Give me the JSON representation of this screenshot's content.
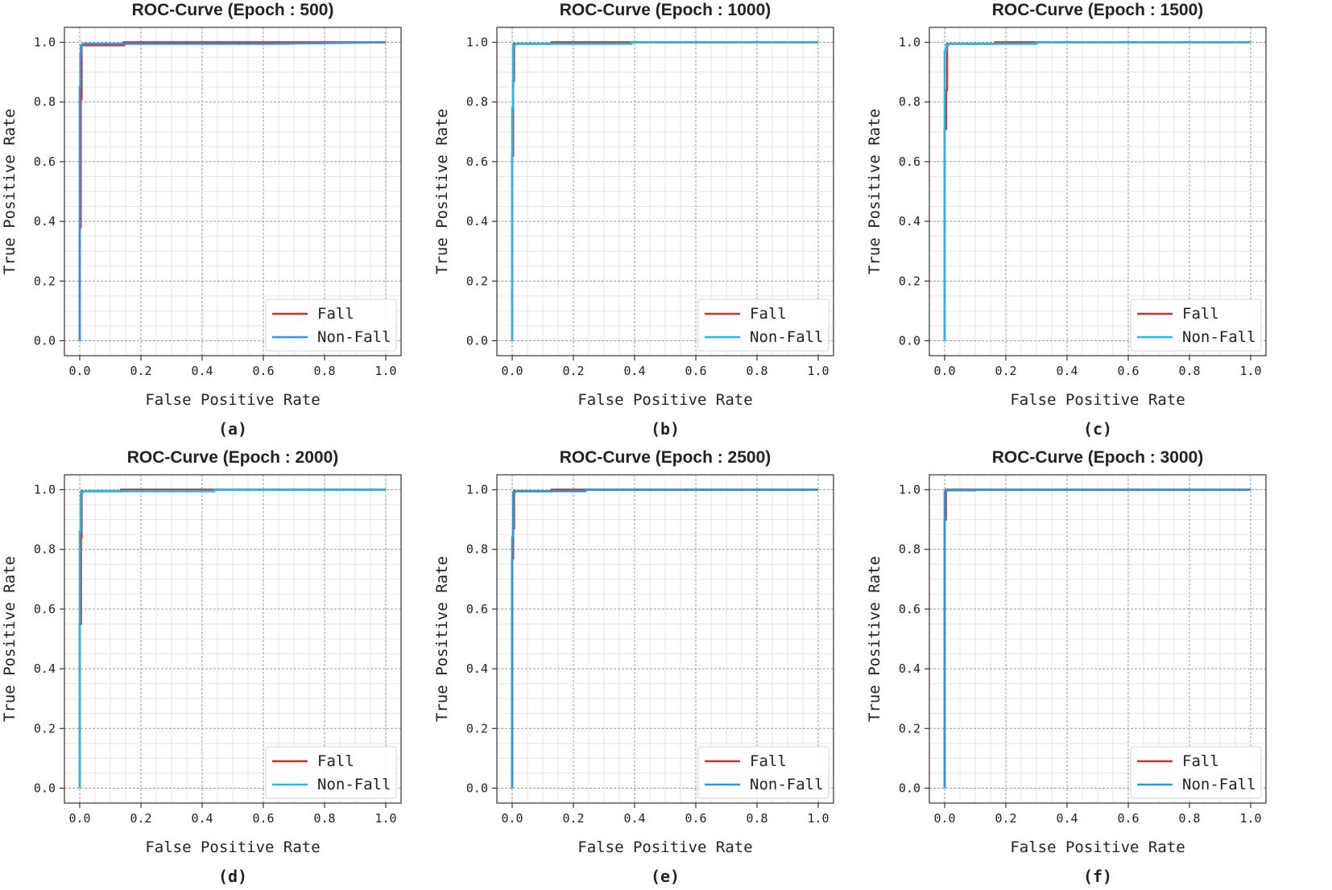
{
  "figure": {
    "colors": {
      "fall": "#c0392b",
      "nonfall_blue": "#3a8fde",
      "nonfall_cyan": "#29b6e8",
      "grid_major": "#9a9a9a",
      "grid_minor": "#e4e4e4",
      "frame": "#333333"
    }
  },
  "chart_data": [
    {
      "type": "line",
      "panel": "a",
      "title": "ROC-Curve (Epoch : 500)",
      "caption": "(a)",
      "xlabel": "False Positive Rate",
      "ylabel": "True Positive Rate",
      "xlim": [
        -0.05,
        1.05
      ],
      "ylim": [
        -0.05,
        1.05
      ],
      "xticks": [
        "0.0",
        "0.2",
        "0.4",
        "0.6",
        "0.8",
        "1.0"
      ],
      "yticks": [
        "0.0",
        "0.2",
        "0.4",
        "0.6",
        "0.8",
        "1.0"
      ],
      "grid": true,
      "legend_position": "bottom-right",
      "series": [
        {
          "name": "Fall",
          "color": "#c0392b",
          "x": [
            0,
            0,
            0.003,
            0.003,
            0.006,
            0.006,
            0.145,
            0.145,
            0.61,
            1.0
          ],
          "y": [
            0,
            0.38,
            0.38,
            0.81,
            0.81,
            0.99,
            0.99,
            1.0,
            1.0,
            1.0
          ]
        },
        {
          "name": "Non-Fall",
          "color": "#3a8fde",
          "x": [
            0,
            0,
            0.002,
            0.002,
            0.004,
            0.004,
            0.01,
            0.01,
            0.62,
            1.0
          ],
          "y": [
            0,
            0.85,
            0.85,
            0.96,
            0.96,
            0.99,
            0.99,
            0.995,
            0.995,
            1.0
          ]
        }
      ]
    },
    {
      "type": "line",
      "panel": "b",
      "title": "ROC-Curve (Epoch : 1000)",
      "caption": "(b)",
      "xlabel": "False Positive Rate",
      "ylabel": "True Positive Rate",
      "xlim": [
        -0.05,
        1.05
      ],
      "ylim": [
        -0.05,
        1.05
      ],
      "xticks": [
        "0.0",
        "0.2",
        "0.4",
        "0.6",
        "0.8",
        "1.0"
      ],
      "yticks": [
        "0.0",
        "0.2",
        "0.4",
        "0.6",
        "0.8",
        "1.0"
      ],
      "grid": true,
      "legend_position": "bottom-right",
      "series": [
        {
          "name": "Fall",
          "color": "#c0392b",
          "x": [
            0,
            0,
            0.003,
            0.003,
            0.006,
            0.006,
            0.13,
            0.13,
            0.38,
            1.0
          ],
          "y": [
            0,
            0.62,
            0.62,
            0.87,
            0.87,
            0.995,
            0.995,
            1.0,
            1.0,
            1.0
          ]
        },
        {
          "name": "Non-Fall",
          "color": "#29b6e8",
          "x": [
            0,
            0,
            0.003,
            0.003,
            0.01,
            0.01,
            0.39,
            0.39,
            1.0
          ],
          "y": [
            0,
            0.78,
            0.78,
            0.99,
            0.99,
            0.995,
            0.995,
            1.0,
            1.0
          ]
        }
      ]
    },
    {
      "type": "line",
      "panel": "c",
      "title": "ROC-Curve (Epoch : 1500)",
      "caption": "(c)",
      "xlabel": "False Positive Rate",
      "ylabel": "True Positive Rate",
      "xlim": [
        -0.05,
        1.05
      ],
      "ylim": [
        -0.05,
        1.05
      ],
      "xticks": [
        "0.0",
        "0.2",
        "0.4",
        "0.6",
        "0.8",
        "1.0"
      ],
      "yticks": [
        "0.0",
        "0.2",
        "0.4",
        "0.6",
        "0.8",
        "1.0"
      ],
      "grid": true,
      "legend_position": "bottom-right",
      "series": [
        {
          "name": "Fall",
          "color": "#c0392b",
          "x": [
            0,
            0,
            0.005,
            0.005,
            0.008,
            0.008,
            0.165,
            0.165,
            0.29,
            1.0
          ],
          "y": [
            0,
            0.71,
            0.71,
            0.84,
            0.84,
            0.995,
            0.995,
            1.0,
            1.0,
            1.0
          ]
        },
        {
          "name": "Non-Fall",
          "color": "#29b6e8",
          "x": [
            0,
            0,
            0.005,
            0.005,
            0.012,
            0.012,
            0.3,
            0.3,
            1.0
          ],
          "y": [
            0,
            0.97,
            0.97,
            0.99,
            0.99,
            0.995,
            0.995,
            1.0,
            1.0
          ]
        }
      ]
    },
    {
      "type": "line",
      "panel": "d",
      "title": "ROC-Curve (Epoch : 2000)",
      "caption": "(d)",
      "xlabel": "False Positive Rate",
      "ylabel": "True Positive Rate",
      "xlim": [
        -0.05,
        1.05
      ],
      "ylim": [
        -0.05,
        1.05
      ],
      "xticks": [
        "0.0",
        "0.2",
        "0.4",
        "0.6",
        "0.8",
        "1.0"
      ],
      "yticks": [
        "0.0",
        "0.2",
        "0.4",
        "0.6",
        "0.8",
        "1.0"
      ],
      "grid": true,
      "legend_position": "bottom-right",
      "series": [
        {
          "name": "Fall",
          "color": "#c0392b",
          "x": [
            0,
            0,
            0.004,
            0.004,
            0.006,
            0.006,
            0.135,
            0.135,
            0.45,
            1.0
          ],
          "y": [
            0,
            0.55,
            0.55,
            0.84,
            0.84,
            0.995,
            0.995,
            1.0,
            1.0,
            1.0
          ]
        },
        {
          "name": "Non-Fall",
          "color": "#29b6e8",
          "x": [
            0,
            0,
            0.003,
            0.003,
            0.01,
            0.01,
            0.44,
            0.44,
            1.0
          ],
          "y": [
            0,
            0.86,
            0.86,
            0.99,
            0.99,
            0.995,
            0.995,
            1.0,
            1.0
          ]
        }
      ]
    },
    {
      "type": "line",
      "panel": "e",
      "title": "ROC-Curve (Epoch : 2500)",
      "caption": "(e)",
      "xlabel": "False Positive Rate",
      "ylabel": "True Positive Rate",
      "xlim": [
        -0.05,
        1.05
      ],
      "ylim": [
        -0.05,
        1.05
      ],
      "xticks": [
        "0.0",
        "0.2",
        "0.4",
        "0.6",
        "0.8",
        "1.0"
      ],
      "yticks": [
        "0.0",
        "0.2",
        "0.4",
        "0.6",
        "0.8",
        "1.0"
      ],
      "grid": true,
      "legend_position": "bottom-right",
      "series": [
        {
          "name": "Fall",
          "color": "#c0392b",
          "x": [
            0,
            0,
            0.003,
            0.003,
            0.006,
            0.006,
            0.13,
            0.13,
            0.22,
            1.0
          ],
          "y": [
            0,
            0.77,
            0.77,
            0.87,
            0.87,
            0.995,
            0.995,
            1.0,
            1.0,
            1.0
          ]
        },
        {
          "name": "Non-Fall",
          "color": "#2a96dc",
          "x": [
            0,
            0,
            0.003,
            0.003,
            0.008,
            0.008,
            0.24,
            0.24,
            1.0
          ],
          "y": [
            0,
            0.84,
            0.84,
            0.99,
            0.99,
            0.995,
            0.995,
            1.0,
            1.0
          ]
        }
      ]
    },
    {
      "type": "line",
      "panel": "f",
      "title": "ROC-Curve (Epoch : 3000)",
      "caption": "(f)",
      "xlabel": "False Positive Rate",
      "ylabel": "True Positive Rate",
      "xlim": [
        -0.05,
        1.05
      ],
      "ylim": [
        -0.05,
        1.05
      ],
      "xticks": [
        "0.0",
        "0.2",
        "0.4",
        "0.6",
        "0.8",
        "1.0"
      ],
      "yticks": [
        "0.0",
        "0.2",
        "0.4",
        "0.6",
        "0.8",
        "1.0"
      ],
      "grid": true,
      "legend_position": "bottom-right",
      "series": [
        {
          "name": "Fall",
          "color": "#c0392b",
          "x": [
            0,
            0,
            0.004,
            0.004,
            0.09,
            1.0
          ],
          "y": [
            0,
            0.9,
            0.9,
            1.0,
            1.0,
            1.0
          ]
        },
        {
          "name": "Non-Fall",
          "color": "#2a96dc",
          "x": [
            0,
            0,
            0.006,
            0.006,
            0.1,
            0.1,
            1.0
          ],
          "y": [
            0,
            0.995,
            0.995,
            0.998,
            0.998,
            1.0,
            1.0
          ]
        }
      ]
    }
  ]
}
